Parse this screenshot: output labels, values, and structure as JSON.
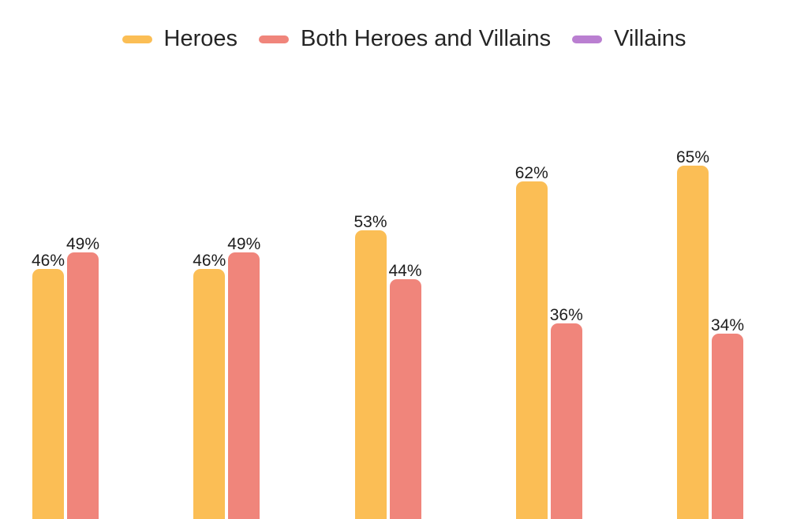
{
  "legend": {
    "items": [
      {
        "label": "Heroes",
        "color": "#FBBE55"
      },
      {
        "label": "Both Heroes and Villains",
        "color": "#F0857B"
      },
      {
        "label": "Villains",
        "color": "#BA7FD1"
      }
    ]
  },
  "chart_data": {
    "type": "bar",
    "orientation": "vertical",
    "value_unit": "%",
    "title": "",
    "categories": [
      "",
      "",
      "",
      "",
      ""
    ],
    "series": [
      {
        "name": "Heroes",
        "color": "#FBBE55",
        "values": [
          46,
          46,
          53,
          62,
          65
        ]
      },
      {
        "name": "Both Heroes and Villains",
        "color": "#F0857B",
        "values": [
          49,
          49,
          44,
          36,
          34
        ]
      },
      {
        "name": "Villains",
        "color": "#BA7FD1",
        "values": [
          null,
          null,
          null,
          null,
          null
        ]
      }
    ],
    "data_labels": {
      "visible": true,
      "texts": [
        [
          "46%",
          "46%",
          "53%",
          "62%",
          "65%"
        ],
        [
          "49%",
          "49%",
          "44%",
          "36%",
          "34%"
        ],
        [
          null,
          null,
          null,
          null,
          null
        ]
      ]
    },
    "legend_position": "top-center",
    "axes_visible": false,
    "grid": false,
    "ylim_visible_crop": [
      21,
      74
    ]
  }
}
